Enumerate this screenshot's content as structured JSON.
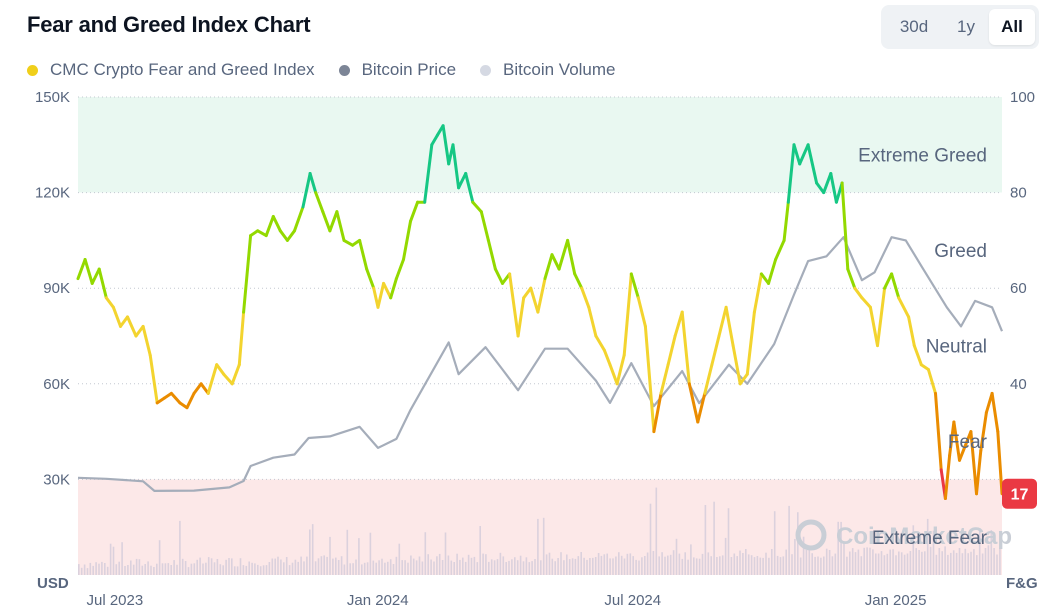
{
  "header": {
    "title": "Fear and Greed Index Chart",
    "ranges": [
      "30d",
      "1y",
      "All"
    ],
    "active_range": "All"
  },
  "legend": [
    {
      "label": "CMC Crypto Fear and Greed Index",
      "color": "#f0cf1a"
    },
    {
      "label": "Bitcoin Price",
      "color": "#7c8596"
    },
    {
      "label": "Bitcoin Volume",
      "color": "#d5d9e3"
    }
  ],
  "watermark": "CoinMarketCap",
  "current_badge": {
    "value": "17",
    "color": "#ea3943"
  },
  "chart_data": {
    "type": "line",
    "title": "Fear and Greed Index Chart",
    "x_start": "2023-06-25",
    "x_end": "2025-04-08",
    "x_ticks": [
      {
        "date": "2023-07-01",
        "label": "Jul 2023"
      },
      {
        "date": "2024-01-01",
        "label": "Jan 2024"
      },
      {
        "date": "2024-07-01",
        "label": "Jul 2024"
      },
      {
        "date": "2025-01-01",
        "label": "Jan 2025"
      }
    ],
    "left_axis": {
      "title": "USD",
      "min": 0,
      "max": 150000,
      "ticks": [
        30000,
        60000,
        90000,
        120000,
        150000
      ],
      "tick_labels": [
        "30K",
        "60K",
        "90K",
        "120K",
        "150K"
      ]
    },
    "right_axis": {
      "title": "F&G",
      "min": 0,
      "max": 100,
      "ticks": [
        40,
        60,
        80,
        100
      ],
      "tick_labels": [
        "40",
        "60",
        "80",
        "100"
      ]
    },
    "zones": [
      {
        "label": "Extreme Greed",
        "from": 80,
        "to": 100,
        "color": "#e9f8f1"
      },
      {
        "label": "Greed",
        "from": 60,
        "to": 80,
        "color": "#ffffff"
      },
      {
        "label": "Neutral",
        "from": 40,
        "to": 60,
        "color": "#ffffff"
      },
      {
        "label": "Fear",
        "from": 20,
        "to": 40,
        "color": "#ffffff"
      },
      {
        "label": "Extreme Fear",
        "from": 0,
        "to": 20,
        "color": "#fce8e8"
      }
    ],
    "zone_line_colors": [
      {
        "min": 0,
        "max": 20,
        "color": "#ea3943"
      },
      {
        "min": 20,
        "max": 40,
        "color": "#ea8c00"
      },
      {
        "min": 40,
        "max": 60,
        "color": "#f3d42f"
      },
      {
        "min": 60,
        "max": 80,
        "color": "#93d900"
      },
      {
        "min": 80,
        "max": 100,
        "color": "#16c784"
      }
    ],
    "series": [
      {
        "name": "CMC Crypto Fear and Greed Index",
        "axis": "right",
        "points": [
          [
            "2023-06-25",
            62
          ],
          [
            "2023-06-30",
            66
          ],
          [
            "2023-07-05",
            61
          ],
          [
            "2023-07-10",
            64
          ],
          [
            "2023-07-15",
            58
          ],
          [
            "2023-07-20",
            56
          ],
          [
            "2023-07-25",
            52
          ],
          [
            "2023-07-30",
            54
          ],
          [
            "2023-08-05",
            50
          ],
          [
            "2023-08-10",
            52
          ],
          [
            "2023-08-15",
            46
          ],
          [
            "2023-08-20",
            36
          ],
          [
            "2023-08-25",
            37
          ],
          [
            "2023-08-30",
            38
          ],
          [
            "2023-09-05",
            36
          ],
          [
            "2023-09-10",
            35
          ],
          [
            "2023-09-15",
            38
          ],
          [
            "2023-09-20",
            40
          ],
          [
            "2023-09-25",
            38
          ],
          [
            "2023-10-01",
            44
          ],
          [
            "2023-10-06",
            42
          ],
          [
            "2023-10-12",
            40
          ],
          [
            "2023-10-17",
            44
          ],
          [
            "2023-10-20",
            55
          ],
          [
            "2023-10-25",
            71
          ],
          [
            "2023-10-30",
            72
          ],
          [
            "2023-11-05",
            71
          ],
          [
            "2023-11-10",
            75
          ],
          [
            "2023-11-15",
            72
          ],
          [
            "2023-11-20",
            70
          ],
          [
            "2023-11-25",
            72
          ],
          [
            "2023-12-01",
            77
          ],
          [
            "2023-12-06",
            84
          ],
          [
            "2023-12-10",
            80
          ],
          [
            "2023-12-15",
            76
          ],
          [
            "2023-12-20",
            72
          ],
          [
            "2023-12-25",
            76
          ],
          [
            "2023-12-30",
            70
          ],
          [
            "2024-01-05",
            69
          ],
          [
            "2024-01-10",
            70
          ],
          [
            "2024-01-15",
            64
          ],
          [
            "2024-01-20",
            60
          ],
          [
            "2024-01-23",
            56
          ],
          [
            "2024-01-27",
            61
          ],
          [
            "2024-02-01",
            58
          ],
          [
            "2024-02-05",
            62
          ],
          [
            "2024-02-10",
            66
          ],
          [
            "2024-02-15",
            74
          ],
          [
            "2024-02-20",
            78
          ],
          [
            "2024-02-25",
            78
          ],
          [
            "2024-03-01",
            90
          ],
          [
            "2024-03-05",
            92
          ],
          [
            "2024-03-09",
            94
          ],
          [
            "2024-03-13",
            86
          ],
          [
            "2024-03-16",
            90
          ],
          [
            "2024-03-20",
            81
          ],
          [
            "2024-03-25",
            84
          ],
          [
            "2024-03-30",
            78
          ],
          [
            "2024-04-05",
            76
          ],
          [
            "2024-04-10",
            70
          ],
          [
            "2024-04-15",
            64
          ],
          [
            "2024-04-20",
            61
          ],
          [
            "2024-04-25",
            63
          ],
          [
            "2024-05-01",
            50
          ],
          [
            "2024-05-05",
            58
          ],
          [
            "2024-05-10",
            60
          ],
          [
            "2024-05-15",
            55
          ],
          [
            "2024-05-20",
            62
          ],
          [
            "2024-05-25",
            67
          ],
          [
            "2024-05-30",
            64
          ],
          [
            "2024-06-05",
            70
          ],
          [
            "2024-06-10",
            63
          ],
          [
            "2024-06-15",
            60
          ],
          [
            "2024-06-20",
            56
          ],
          [
            "2024-06-25",
            50
          ],
          [
            "2024-07-01",
            47
          ],
          [
            "2024-07-05",
            44
          ],
          [
            "2024-07-10",
            40
          ],
          [
            "2024-07-15",
            46
          ],
          [
            "2024-07-20",
            63
          ],
          [
            "2024-07-25",
            58
          ],
          [
            "2024-07-30",
            52
          ],
          [
            "2024-08-05",
            30
          ],
          [
            "2024-08-10",
            38
          ],
          [
            "2024-08-15",
            44
          ],
          [
            "2024-08-20",
            50
          ],
          [
            "2024-08-25",
            55
          ],
          [
            "2024-08-30",
            40
          ],
          [
            "2024-09-05",
            32
          ],
          [
            "2024-09-10",
            38
          ],
          [
            "2024-09-15",
            44
          ],
          [
            "2024-09-20",
            50
          ],
          [
            "2024-09-25",
            56
          ],
          [
            "2024-09-30",
            48
          ],
          [
            "2024-10-05",
            40
          ],
          [
            "2024-10-10",
            42
          ],
          [
            "2024-10-15",
            55
          ],
          [
            "2024-10-20",
            63
          ],
          [
            "2024-10-25",
            61
          ],
          [
            "2024-10-30",
            66
          ],
          [
            "2024-11-05",
            70
          ],
          [
            "2024-11-08",
            78
          ],
          [
            "2024-11-12",
            90
          ],
          [
            "2024-11-16",
            86
          ],
          [
            "2024-11-22",
            90
          ],
          [
            "2024-11-28",
            82
          ],
          [
            "2024-12-03",
            80
          ],
          [
            "2024-12-08",
            84
          ],
          [
            "2024-12-12",
            78
          ],
          [
            "2024-12-16",
            82
          ],
          [
            "2024-12-20",
            64
          ],
          [
            "2024-12-25",
            60
          ],
          [
            "2024-12-30",
            58
          ],
          [
            "2025-01-05",
            56
          ],
          [
            "2025-01-10",
            48
          ],
          [
            "2025-01-15",
            60
          ],
          [
            "2025-01-20",
            63
          ],
          [
            "2025-01-25",
            58
          ],
          [
            "2025-02-01",
            54
          ],
          [
            "2025-02-05",
            48
          ],
          [
            "2025-02-10",
            44
          ],
          [
            "2025-02-15",
            43
          ],
          [
            "2025-02-20",
            38
          ],
          [
            "2025-02-24",
            22
          ],
          [
            "2025-02-27",
            16
          ],
          [
            "2025-03-02",
            25
          ],
          [
            "2025-03-05",
            32
          ],
          [
            "2025-03-09",
            24
          ],
          [
            "2025-03-13",
            27
          ],
          [
            "2025-03-17",
            30
          ],
          [
            "2025-03-21",
            17
          ],
          [
            "2025-03-24",
            26
          ],
          [
            "2025-03-28",
            34
          ],
          [
            "2025-04-01",
            38
          ],
          [
            "2025-04-05",
            30
          ],
          [
            "2025-04-08",
            17
          ]
        ]
      },
      {
        "name": "Bitcoin Price",
        "axis": "left",
        "points": [
          [
            "2023-06-25",
            30500
          ],
          [
            "2023-07-15",
            30200
          ],
          [
            "2023-08-10",
            29400
          ],
          [
            "2023-08-18",
            26400
          ],
          [
            "2023-09-15",
            26500
          ],
          [
            "2023-10-10",
            27500
          ],
          [
            "2023-10-20",
            29500
          ],
          [
            "2023-10-25",
            34200
          ],
          [
            "2023-11-10",
            36800
          ],
          [
            "2023-11-25",
            37800
          ],
          [
            "2023-12-05",
            43000
          ],
          [
            "2023-12-20",
            43500
          ],
          [
            "2024-01-10",
            46500
          ],
          [
            "2024-01-23",
            39900
          ],
          [
            "2024-02-05",
            42700
          ],
          [
            "2024-02-15",
            51800
          ],
          [
            "2024-02-28",
            62000
          ],
          [
            "2024-03-13",
            73000
          ],
          [
            "2024-03-20",
            63000
          ],
          [
            "2024-04-08",
            71500
          ],
          [
            "2024-04-20",
            64500
          ],
          [
            "2024-05-01",
            58000
          ],
          [
            "2024-05-20",
            71000
          ],
          [
            "2024-06-05",
            71000
          ],
          [
            "2024-06-25",
            61000
          ],
          [
            "2024-07-05",
            54000
          ],
          [
            "2024-07-20",
            66500
          ],
          [
            "2024-08-05",
            53000
          ],
          [
            "2024-08-25",
            64000
          ],
          [
            "2024-09-06",
            53900
          ],
          [
            "2024-09-27",
            66000
          ],
          [
            "2024-10-10",
            60000
          ],
          [
            "2024-10-29",
            72500
          ],
          [
            "2024-11-12",
            88000
          ],
          [
            "2024-11-22",
            98500
          ],
          [
            "2024-12-05",
            100000
          ],
          [
            "2024-12-17",
            106000
          ],
          [
            "2024-12-30",
            92500
          ],
          [
            "2025-01-08",
            95000
          ],
          [
            "2025-01-20",
            106000
          ],
          [
            "2025-01-30",
            105000
          ],
          [
            "2025-02-10",
            97000
          ],
          [
            "2025-02-28",
            84000
          ],
          [
            "2025-03-10",
            78000
          ],
          [
            "2025-03-20",
            86000
          ],
          [
            "2025-04-01",
            84000
          ],
          [
            "2025-04-08",
            76500
          ]
        ]
      }
    ],
    "volume_note": "Bitcoin Volume shown as light bars along the bottom of the plot"
  }
}
